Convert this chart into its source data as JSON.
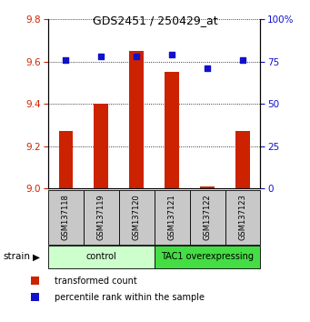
{
  "title": "GDS2451 / 250429_at",
  "samples": [
    "GSM137118",
    "GSM137119",
    "GSM137120",
    "GSM137121",
    "GSM137122",
    "GSM137123"
  ],
  "transformed_counts": [
    9.27,
    9.4,
    9.65,
    9.55,
    9.01,
    9.27
  ],
  "percentile_ranks": [
    76,
    78,
    78,
    79,
    71,
    76
  ],
  "ylim_left": [
    9.0,
    9.8
  ],
  "ylim_right": [
    0,
    100
  ],
  "yticks_left": [
    9.0,
    9.2,
    9.4,
    9.6,
    9.8
  ],
  "yticks_right": [
    0,
    25,
    50,
    75,
    100
  ],
  "bar_color": "#cc2200",
  "dot_color": "#1111cc",
  "groups": [
    {
      "label": "control",
      "indices": [
        0,
        1,
        2
      ],
      "color": "#ccffcc"
    },
    {
      "label": "TAC1 overexpressing",
      "indices": [
        3,
        4,
        5
      ],
      "color": "#44dd44"
    }
  ],
  "strain_label": "strain",
  "legend_items": [
    {
      "color": "#cc2200",
      "label": "transformed count"
    },
    {
      "color": "#1111cc",
      "label": "percentile rank within the sample"
    }
  ],
  "left_tick_color": "#cc2200",
  "right_tick_color": "#1111cc",
  "bar_width": 0.4
}
